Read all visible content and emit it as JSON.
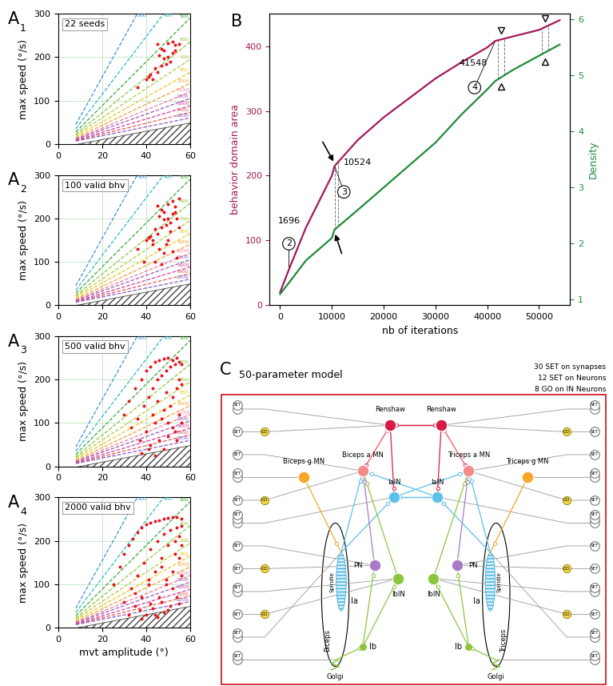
{
  "chart_data": [
    {
      "panel": "A1",
      "type": "scatter",
      "annotation": "22 seeds",
      "ylabel": "max speed (°/s)",
      "color": "#e8141e",
      "x": [
        45,
        47,
        48,
        50,
        52,
        53,
        55,
        46,
        48,
        50,
        49,
        52,
        44,
        45,
        42,
        40,
        41,
        43,
        47,
        51,
        36,
        53
      ],
      "y": [
        230,
        220,
        215,
        232,
        235,
        228,
        230,
        205,
        198,
        200,
        185,
        210,
        175,
        165,
        160,
        150,
        155,
        150,
        180,
        190,
        130,
        215
      ],
      "xlim": [
        0,
        60
      ],
      "ylim": [
        0,
        300
      ],
      "xticks": [
        0,
        20,
        40,
        60
      ],
      "yticks": [
        0,
        100,
        200,
        300
      ],
      "grid": true
    },
    {
      "panel": "A2",
      "type": "scatter",
      "annotation": "100 valid bhv",
      "ylabel": "max speed (°/s)",
      "color": "#e8141e",
      "x": [
        45,
        47,
        48,
        50,
        52,
        53,
        55,
        46,
        48,
        50,
        49,
        52,
        44,
        45,
        42,
        40,
        41,
        43,
        47,
        51,
        36,
        53,
        54,
        55,
        51,
        49,
        48,
        44,
        46,
        50,
        52,
        54,
        47,
        43,
        39
      ],
      "y": [
        230,
        220,
        215,
        232,
        240,
        228,
        245,
        205,
        198,
        200,
        185,
        210,
        175,
        165,
        160,
        150,
        155,
        150,
        180,
        190,
        130,
        215,
        200,
        180,
        170,
        140,
        120,
        100,
        130,
        150,
        125,
        110,
        95,
        140,
        100
      ],
      "xlim": [
        0,
        60
      ],
      "ylim": [
        0,
        300
      ],
      "xticks": [
        0,
        20,
        40,
        60
      ],
      "yticks": [
        0,
        100,
        200,
        300
      ],
      "grid": true
    },
    {
      "panel": "A3",
      "type": "scatter",
      "annotation": "500 valid bhv",
      "ylabel": "max speed (°/s)",
      "color": "#e8141e",
      "x": [
        30,
        32,
        35,
        38,
        40,
        42,
        44,
        46,
        48,
        50,
        52,
        54,
        55,
        56,
        33,
        36,
        39,
        41,
        43,
        45,
        47,
        49,
        51,
        53,
        55,
        37,
        40,
        44,
        48,
        52,
        54,
        56,
        42,
        46,
        50,
        53,
        45,
        49,
        51,
        55,
        38,
        41,
        47,
        43,
        50,
        52,
        54,
        56,
        48,
        44
      ],
      "y": [
        120,
        150,
        180,
        200,
        220,
        230,
        240,
        245,
        248,
        250,
        245,
        250,
        240,
        235,
        90,
        110,
        140,
        160,
        180,
        200,
        210,
        220,
        230,
        235,
        200,
        60,
        80,
        100,
        130,
        160,
        180,
        190,
        50,
        60,
        70,
        80,
        150,
        170,
        140,
        120,
        30,
        40,
        110,
        120,
        100,
        90,
        60,
        100,
        40,
        25
      ],
      "xlim": [
        0,
        60
      ],
      "ylim": [
        0,
        300
      ],
      "xticks": [
        0,
        20,
        40,
        60
      ],
      "yticks": [
        0,
        100,
        200,
        300
      ],
      "grid": true
    },
    {
      "panel": "A4",
      "type": "scatter",
      "annotation": "2000 valid bhv",
      "ylabel": "max speed (°/s)",
      "xlabel": "mvt amplitude (°)",
      "color": "#e8141e",
      "x": [
        25,
        28,
        30,
        32,
        34,
        36,
        38,
        40,
        42,
        44,
        46,
        48,
        50,
        52,
        54,
        56,
        30,
        33,
        36,
        39,
        42,
        45,
        48,
        51,
        54,
        56,
        35,
        38,
        41,
        44,
        47,
        50,
        53,
        55,
        40,
        43,
        46,
        49,
        52,
        55,
        32,
        37,
        42,
        47,
        52,
        56,
        45,
        48,
        51,
        54,
        38,
        44,
        50,
        55,
        35,
        41,
        47,
        53,
        56,
        49
      ],
      "y": [
        100,
        140,
        170,
        190,
        205,
        220,
        230,
        238,
        242,
        245,
        248,
        250,
        252,
        255,
        255,
        250,
        60,
        90,
        120,
        150,
        180,
        200,
        215,
        225,
        230,
        235,
        50,
        70,
        100,
        130,
        160,
        190,
        200,
        210,
        30,
        45,
        70,
        100,
        130,
        160,
        30,
        40,
        55,
        60,
        90,
        120,
        25,
        35,
        50,
        70,
        20,
        30,
        40,
        55,
        80,
        110,
        140,
        170,
        190,
        110
      ],
      "xlim": [
        0,
        60
      ],
      "ylim": [
        0,
        300
      ],
      "xticks": [
        0,
        20,
        40,
        60
      ],
      "yticks": [
        0,
        100,
        200,
        300
      ],
      "grid": true
    },
    {
      "panel": "B",
      "type": "line",
      "xlabel": "nb of iterations",
      "x": [
        0,
        1696,
        5000,
        10000,
        10524,
        15000,
        20000,
        25000,
        30000,
        35000,
        40000,
        41548,
        45000,
        50000,
        54000
      ],
      "series": [
        {
          "name": "behavior domain area",
          "color": "#a3195b",
          "values": [
            20,
            55,
            120,
            200,
            215,
            255,
            290,
            320,
            350,
            375,
            398,
            408,
            415,
            425,
            440
          ]
        },
        {
          "name": "Density",
          "color": "#1e8c3c",
          "axis": "y2",
          "values": [
            1.1,
            1.3,
            1.7,
            2.1,
            2.25,
            2.6,
            3.0,
            3.4,
            3.8,
            4.3,
            4.75,
            4.9,
            5.1,
            5.35,
            5.55
          ]
        }
      ],
      "xlim": [
        -2000,
        56000
      ],
      "xticks": [
        0,
        10000,
        20000,
        30000,
        40000,
        50000
      ],
      "ylim": [
        0,
        450
      ],
      "yticks": [
        0,
        100,
        200,
        300,
        400
      ],
      "y2lim": [
        0.9,
        6.1
      ],
      "y2ticks": [
        1,
        2,
        3,
        4,
        5,
        6
      ],
      "annotations": [
        {
          "text": "1696",
          "circled": "2",
          "x": 1696
        },
        {
          "text": "10524",
          "circled": "3",
          "x": 10524
        },
        {
          "text": "41548",
          "circled": "4",
          "x": 41548
        }
      ],
      "dashed_lines_x": [
        10524,
        11200,
        42000,
        43300,
        50500,
        51800
      ],
      "triangles_x": [
        42650,
        51150
      ]
    }
  ],
  "iso_lines": [
    {
      "label": "300",
      "color": "#3a8fd6",
      "x": [
        8,
        36
      ],
      "y": [
        45,
        300
      ]
    },
    {
      "label": "400",
      "color": "#2fb5c8",
      "x": [
        8,
        48
      ],
      "y": [
        35,
        300
      ]
    },
    {
      "label": "500",
      "color": "#3aa63a",
      "x": [
        8,
        60
      ],
      "y": [
        28,
        290
      ]
    },
    {
      "label": "600",
      "color": "#8cc63f",
      "x": [
        8,
        60
      ],
      "y": [
        23,
        235
      ]
    },
    {
      "label": "700",
      "color": "#b5c93a",
      "x": [
        8,
        60
      ],
      "y": [
        20,
        195
      ]
    },
    {
      "label": "850",
      "color": "#e8c81e",
      "x": [
        8,
        60
      ],
      "y": [
        17,
        165
      ]
    },
    {
      "label": "1000",
      "color": "#f0a030",
      "x": [
        8,
        60
      ],
      "y": [
        14,
        140
      ]
    },
    {
      "label": "1150",
      "color": "#f07aa0",
      "x": [
        8,
        60
      ],
      "y": [
        12,
        120
      ]
    },
    {
      "label": "1300",
      "color": "#9b59b6",
      "x": [
        8,
        60
      ],
      "y": [
        11,
        105
      ]
    },
    {
      "label": "1600",
      "color": "#d63ca0",
      "x": [
        8,
        60
      ],
      "y": [
        9,
        88
      ]
    },
    {
      "label": "1900",
      "color": "#e05a5a",
      "x": [
        8,
        60
      ],
      "y": [
        8,
        73
      ]
    },
    {
      "label": "2200",
      "color": "#8a5ac8",
      "x": [
        8,
        60
      ],
      "y": [
        7,
        60
      ]
    }
  ],
  "hatched_region": {
    "x": [
      8,
      60,
      60
    ],
    "y": [
      0,
      0,
      50
    ]
  },
  "diagram": {
    "label": "C",
    "title": "50-parameter model",
    "notes": [
      "30 SET on synapses",
      "12 SET on Neurons",
      "8 GO on IN Neurons"
    ],
    "set_text": "SET",
    "go_text": "GO",
    "neurons": [
      {
        "label": "Renshaw",
        "color": "#d81b45"
      },
      {
        "label": "Renshaw",
        "color": "#d81b45"
      },
      {
        "label": "Biceps a MN",
        "color": "#f48a8a"
      },
      {
        "label": "Triceps a MN",
        "color": "#f48a8a"
      },
      {
        "label": "IaIN",
        "color": "#5bc0eb"
      },
      {
        "label": "IaIN",
        "color": "#5bc0eb"
      },
      {
        "label": "Biceps g MN",
        "color": "#f5a623"
      },
      {
        "label": "Triceps g MN",
        "color": "#f5a623"
      },
      {
        "label": "PN",
        "color": "#a77bc8"
      },
      {
        "label": "PN",
        "color": "#a77bc8"
      },
      {
        "label": "IbIN",
        "color": "#8cc63f"
      },
      {
        "label": "IbIN",
        "color": "#8cc63f"
      }
    ],
    "sensors": {
      "spindle": "Spindle",
      "golgi": "Golgi",
      "ia": "Ia",
      "ib": "Ib",
      "muscles": [
        "Biceps",
        "Triceps"
      ]
    }
  }
}
